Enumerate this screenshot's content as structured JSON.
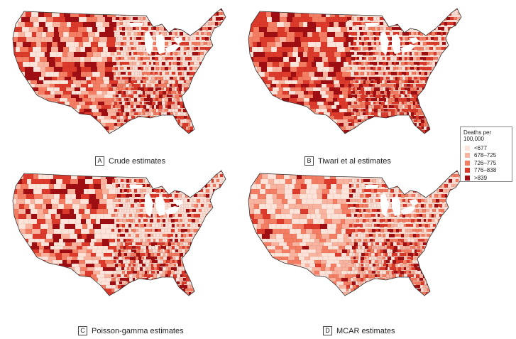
{
  "panels": [
    {
      "letter": "A",
      "caption": "Crude estimates"
    },
    {
      "letter": "B",
      "caption": "Tiwari et al estimates"
    },
    {
      "letter": "C",
      "caption": "Poisson-gamma estimates"
    },
    {
      "letter": "D",
      "caption": "MCAR estimates"
    }
  ],
  "legend": {
    "title": "Deaths per 100,000",
    "items": [
      {
        "label": "<677",
        "color": "#fde4da"
      },
      {
        "label": "678–725",
        "color": "#f9b4a0"
      },
      {
        "label": "726–775",
        "color": "#f47e63"
      },
      {
        "label": "776–838",
        "color": "#dc3a2b"
      },
      {
        "label": ">839",
        "color": "#9e0e12"
      }
    ]
  },
  "map_profiles": {
    "A": [
      0.26,
      0.17,
      0.2,
      0.2,
      0.17
    ],
    "B": [
      0.14,
      0.13,
      0.22,
      0.3,
      0.21
    ],
    "C": [
      0.34,
      0.16,
      0.17,
      0.17,
      0.16
    ],
    "D": [
      0.3,
      0.2,
      0.24,
      0.16,
      0.1
    ]
  }
}
